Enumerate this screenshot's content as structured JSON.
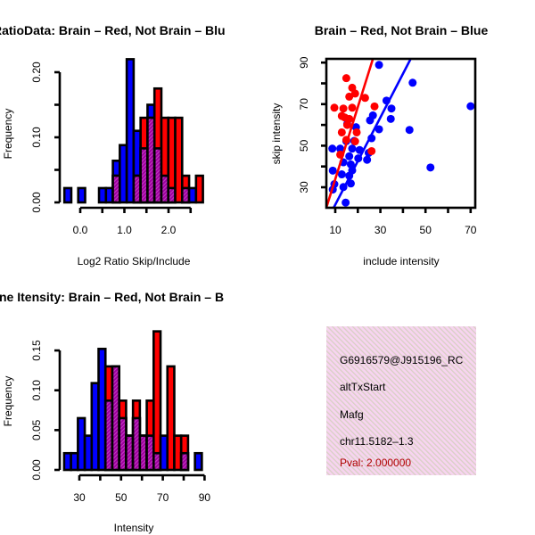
{
  "colors": {
    "brain": "#ff0000",
    "not_brain": "#0000ff",
    "overlap": "#a000a0",
    "box_bg": "#f7d4f0"
  },
  "chart_data": [
    {
      "type": "bar",
      "title": "RatioData: Brain – Red, Not Brain – Blu",
      "xlabel": "Log2 Ratio Skip/Include",
      "ylabel": "Frequency",
      "xlim": [
        -0.4,
        2.9
      ],
      "ylim": [
        0,
        0.22
      ],
      "xticks": [
        {
          "v": 0.0,
          "label": "0.0"
        },
        {
          "v": 0.5,
          "label": ""
        },
        {
          "v": 1.0,
          "label": "1.0"
        },
        {
          "v": 1.5,
          "label": ""
        },
        {
          "v": 2.0,
          "label": "2.0"
        },
        {
          "v": 2.5,
          "label": ""
        }
      ],
      "yticks": [
        {
          "v": 0.0,
          "label": "0.00"
        },
        {
          "v": 0.05,
          "label": ""
        },
        {
          "v": 0.1,
          "label": "0.10"
        },
        {
          "v": 0.15,
          "label": ""
        },
        {
          "v": 0.2,
          "label": "0.20"
        }
      ],
      "bin_start": -0.36,
      "bin_width": 0.157,
      "series": [
        {
          "name": "Not Brain",
          "color": "#0000ff",
          "values": [
            0.022,
            0,
            0.022,
            0,
            0,
            0.022,
            0.022,
            0.064,
            0.088,
            0.22,
            0.11,
            0.083,
            0.15,
            0.083,
            0.041,
            0.022,
            0,
            0.022,
            0.022,
            0
          ]
        },
        {
          "name": "Brain",
          "color": "#ff0000",
          "values": [
            0,
            0,
            0,
            0,
            0,
            0,
            0,
            0.041,
            0,
            0,
            0.041,
            0.13,
            0.13,
            0.175,
            0.13,
            0.13,
            0.13,
            0.041,
            0,
            0.041
          ]
        }
      ]
    },
    {
      "type": "scatter",
      "title": "Brain – Red, Not Brain – Blue",
      "xlabel": "include intensity",
      "ylabel": "skip intensity",
      "xlim": [
        6,
        72
      ],
      "ylim": [
        20,
        92
      ],
      "xticks": [
        {
          "v": 10,
          "label": "10"
        },
        {
          "v": 20,
          "label": ""
        },
        {
          "v": 30,
          "label": "30"
        },
        {
          "v": 40,
          "label": ""
        },
        {
          "v": 50,
          "label": "50"
        },
        {
          "v": 60,
          "label": ""
        },
        {
          "v": 70,
          "label": "70"
        }
      ],
      "yticks": [
        {
          "v": 30,
          "label": "30"
        },
        {
          "v": 40,
          "label": ""
        },
        {
          "v": 50,
          "label": "50"
        },
        {
          "v": 60,
          "label": ""
        },
        {
          "v": 70,
          "label": "70"
        },
        {
          "v": 80,
          "label": ""
        },
        {
          "v": 90,
          "label": "90"
        }
      ],
      "series": [
        {
          "name": "Brain",
          "color": "#ff0000",
          "fit": {
            "slope": 3.47,
            "intercept": -0.8
          },
          "points": [
            [
              14.9,
              82.5
            ],
            [
              17.5,
              77.9
            ],
            [
              16.2,
              73.6
            ],
            [
              18.8,
              75.1
            ],
            [
              23.2,
              73
            ],
            [
              9.6,
              68.3
            ],
            [
              13.6,
              67.9
            ],
            [
              17.5,
              68.3
            ],
            [
              27.4,
              68.9
            ],
            [
              12.9,
              64.3
            ],
            [
              14.2,
              63.6
            ],
            [
              16.2,
              62.9
            ],
            [
              15.3,
              60
            ],
            [
              12.9,
              56.4
            ],
            [
              19.5,
              56.4
            ],
            [
              14.9,
              52.8
            ],
            [
              18.8,
              52.1
            ],
            [
              26.1,
              47.4
            ],
            [
              12.2,
              45.7
            ]
          ]
        },
        {
          "name": "Not Brain",
          "color": "#0000ff",
          "fit": {
            "slope": 2.1,
            "intercept": 0.6
          },
          "points": [
            [
              29.4,
              88.9
            ],
            [
              44.3,
              80.3
            ],
            [
              32.7,
              71.7
            ],
            [
              34.9,
              67.9
            ],
            [
              70,
              69
            ],
            [
              26.7,
              64.6
            ],
            [
              25.4,
              62.2
            ],
            [
              34.6,
              62.9
            ],
            [
              15.3,
              60.5
            ],
            [
              19.2,
              58.9
            ],
            [
              29.4,
              57.9
            ],
            [
              42.9,
              57.6
            ],
            [
              26.1,
              53.6
            ],
            [
              14.9,
              52.2
            ],
            [
              18.4,
              52.3
            ],
            [
              8.7,
              48.6
            ],
            [
              12.2,
              48.6
            ],
            [
              17.5,
              48.6
            ],
            [
              20.8,
              47.9
            ],
            [
              24.8,
              46.5
            ],
            [
              16.2,
              44.9
            ],
            [
              20.2,
              43.9
            ],
            [
              24.1,
              43.2
            ],
            [
              13.6,
              42
            ],
            [
              16.9,
              41
            ],
            [
              8.9,
              38
            ],
            [
              17.5,
              38.1
            ],
            [
              12.9,
              36.2
            ],
            [
              16.2,
              35.5
            ],
            [
              52.2,
              39.5
            ],
            [
              9.6,
              31.5
            ],
            [
              16.9,
              31.8
            ],
            [
              13.6,
              30.1
            ],
            [
              8.9,
              28.9
            ],
            [
              14.6,
              22.6
            ]
          ]
        }
      ]
    },
    {
      "type": "bar",
      "title": "ne Itensity: Brain – Red, Not Brain – B",
      "xlabel": "Intensity",
      "ylabel": "Frequency",
      "xlim": [
        22,
        92
      ],
      "ylim": [
        0,
        0.18
      ],
      "xticks": [
        {
          "v": 30,
          "label": "30"
        },
        {
          "v": 40,
          "label": ""
        },
        {
          "v": 50,
          "label": "50"
        },
        {
          "v": 60,
          "label": ""
        },
        {
          "v": 70,
          "label": "70"
        },
        {
          "v": 80,
          "label": ""
        },
        {
          "v": 90,
          "label": "90"
        }
      ],
      "yticks": [
        {
          "v": 0.0,
          "label": "0.00"
        },
        {
          "v": 0.05,
          "label": "0.05"
        },
        {
          "v": 0.1,
          "label": "0.10"
        },
        {
          "v": 0.15,
          "label": "0.15"
        }
      ],
      "bin_start": 22.7,
      "bin_width": 3.3,
      "series": [
        {
          "name": "Not Brain",
          "color": "#0000ff",
          "values": [
            0.021,
            0.021,
            0.065,
            0.043,
            0.109,
            0.152,
            0.087,
            0.13,
            0.065,
            0.043,
            0.065,
            0.043,
            0.043,
            0.021,
            0.043,
            0,
            0,
            0.021,
            0,
            0.021
          ]
        },
        {
          "name": "Brain",
          "color": "#ff0000",
          "values": [
            0,
            0,
            0,
            0,
            0,
            0,
            0.13,
            0.13,
            0.087,
            0.043,
            0.087,
            0.043,
            0.087,
            0.174,
            0,
            0.13,
            0.043,
            0.043,
            0,
            0
          ]
        }
      ]
    }
  ],
  "info_box": {
    "lines": [
      "G6916579@J915196_RC",
      "altTxStart",
      "Mafg",
      "chr11.5182–1.3"
    ],
    "pval": "Pval: 2.000000"
  }
}
